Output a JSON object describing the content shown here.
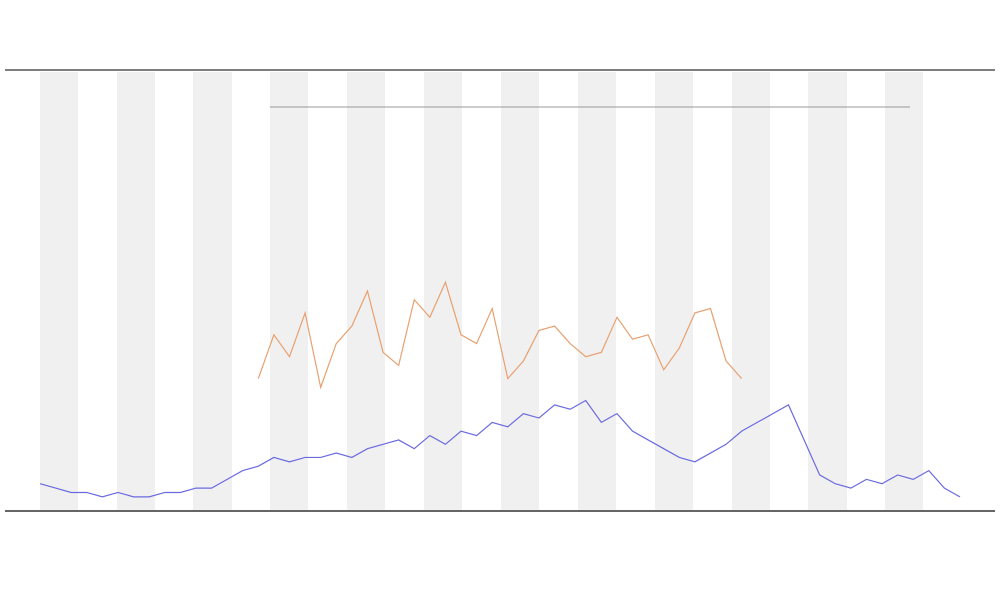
{
  "chart_data": {
    "type": "line",
    "x": [
      0,
      1,
      2,
      3,
      4,
      5,
      6,
      7,
      8,
      9,
      10,
      11,
      12,
      13,
      14,
      15,
      16,
      17,
      18,
      19,
      20,
      21,
      22,
      23,
      24,
      25,
      26,
      27,
      28,
      29,
      30,
      31,
      32,
      33,
      34,
      35,
      36,
      37,
      38,
      39,
      40,
      41,
      42,
      43,
      44,
      45,
      46,
      47,
      48,
      49,
      50,
      51,
      52,
      53,
      54,
      55,
      56,
      57,
      58,
      59
    ],
    "series": [
      {
        "color": "#6a6ae0",
        "values": [
          6,
          5,
          4,
          4,
          3,
          4,
          3,
          3,
          4,
          4,
          5,
          5,
          7,
          9,
          10,
          12,
          11,
          12,
          12,
          13,
          12,
          14,
          15,
          16,
          14,
          17,
          15,
          18,
          17,
          20,
          19,
          22,
          21,
          24,
          23,
          25,
          20,
          22,
          18,
          16,
          14,
          12,
          11,
          13,
          15,
          18,
          20,
          22,
          24,
          16,
          8,
          6,
          5,
          7,
          6,
          8,
          7,
          9,
          5,
          3
        ]
      },
      {
        "color": "#e8a070",
        "values": [
          null,
          null,
          null,
          null,
          null,
          null,
          null,
          null,
          null,
          null,
          null,
          null,
          null,
          null,
          30,
          40,
          35,
          45,
          28,
          38,
          42,
          50,
          36,
          33,
          48,
          44,
          52,
          40,
          38,
          46,
          30,
          34,
          41,
          42,
          38,
          35,
          36,
          44,
          39,
          40,
          32,
          37,
          45,
          46,
          34,
          30,
          null,
          null,
          null,
          null,
          null,
          null,
          null,
          null,
          null,
          null,
          null,
          null,
          null,
          null
        ]
      }
    ],
    "xlim": [
      0,
      59
    ],
    "ylim": [
      0,
      100
    ]
  }
}
